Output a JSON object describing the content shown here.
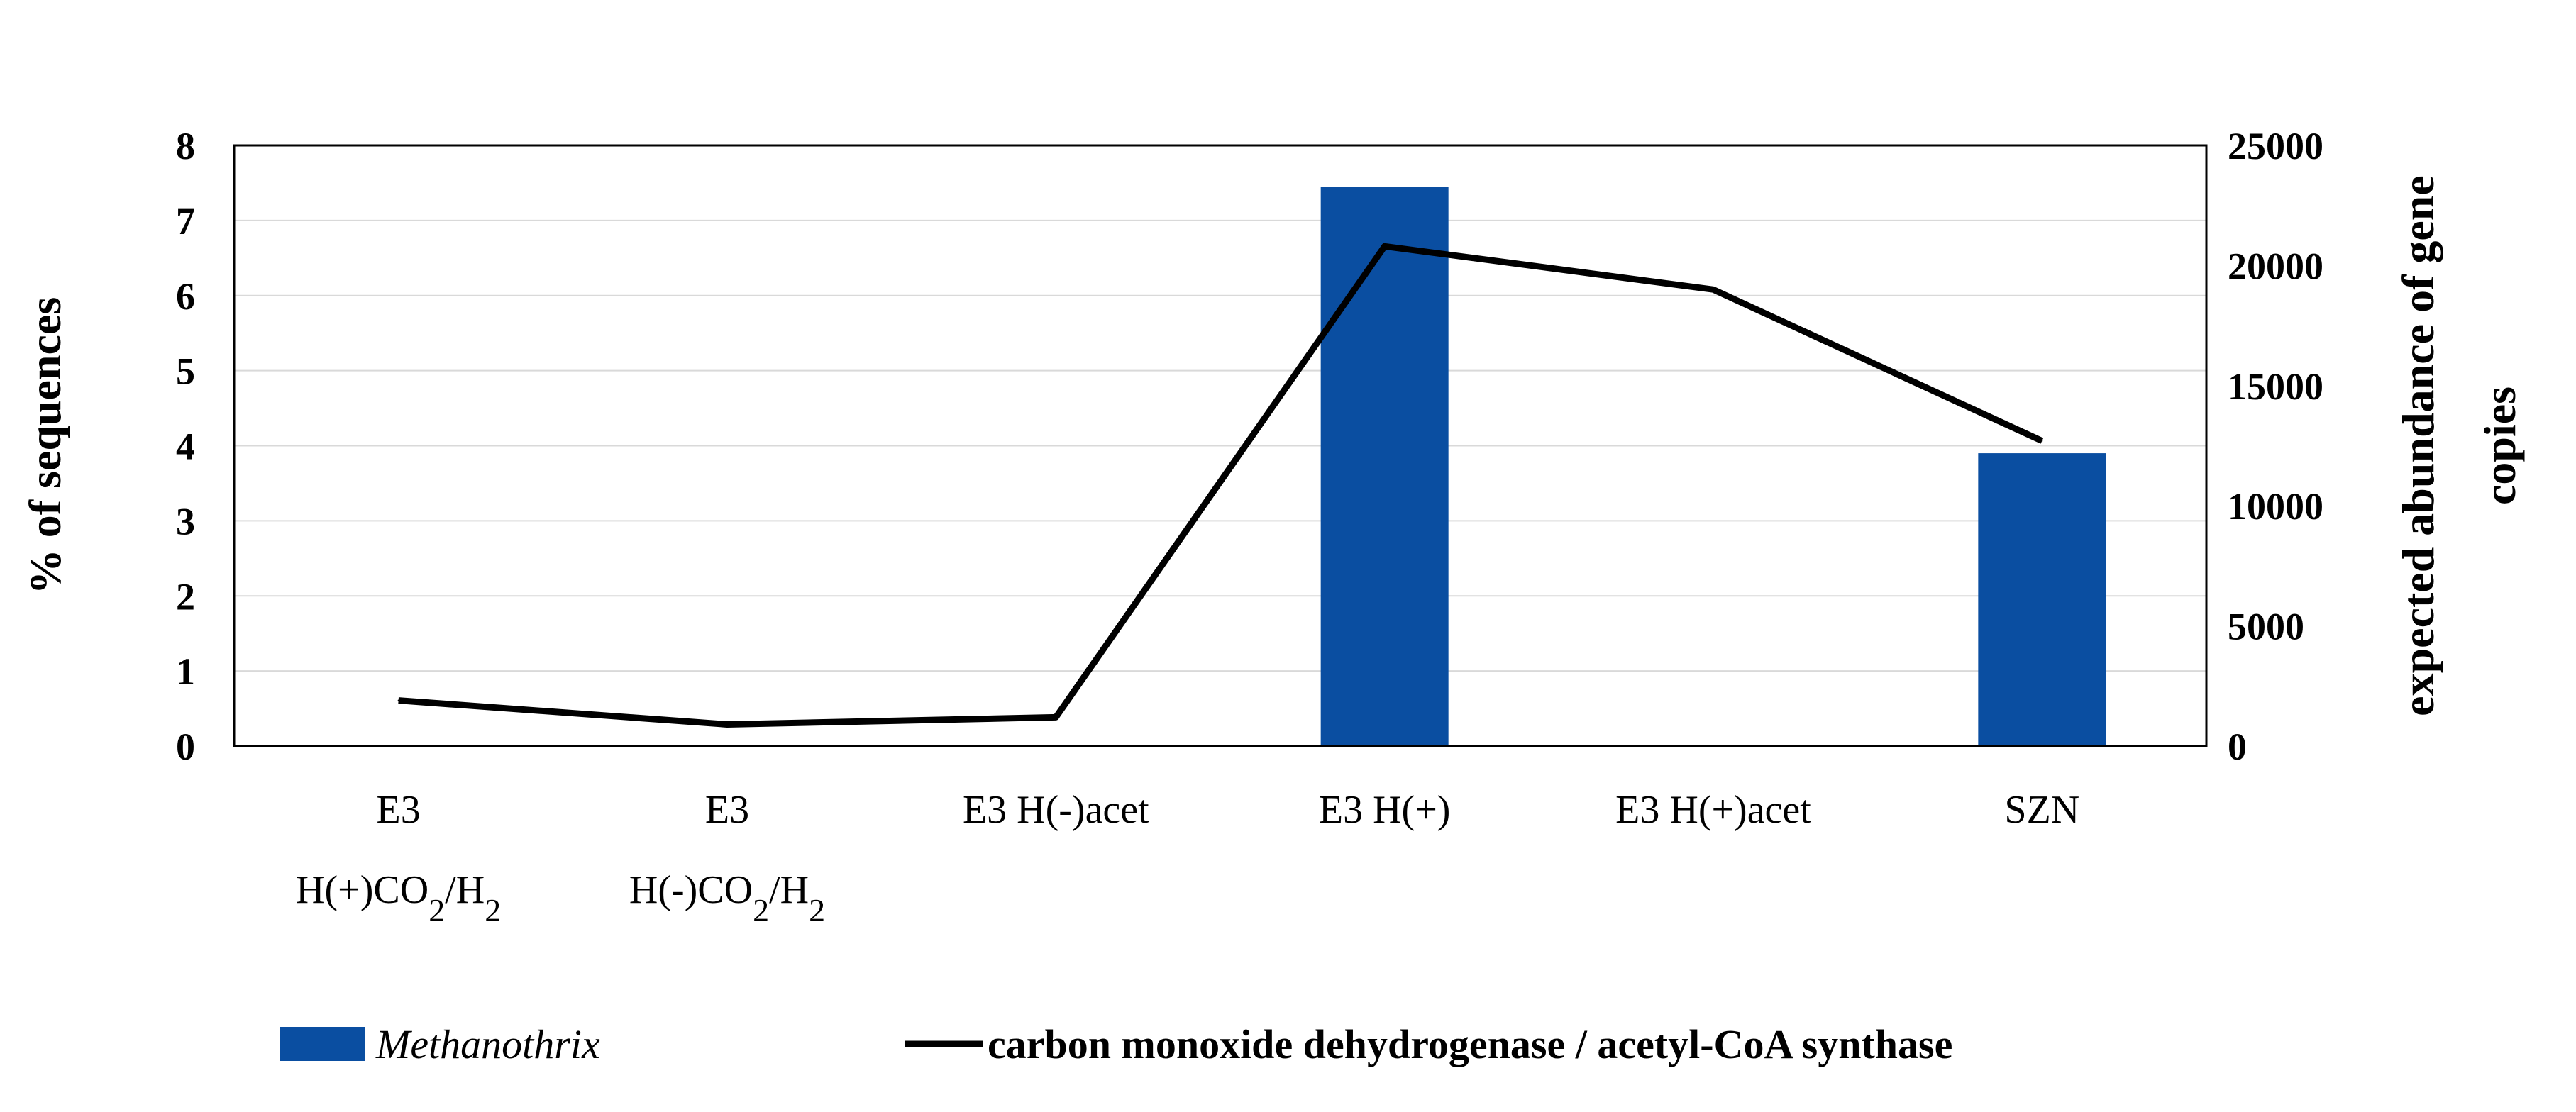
{
  "chart_data": {
    "type": "bar",
    "categories": [
      [
        "E3",
        "H(+)CO2/H2"
      ],
      [
        "E3",
        "H(-)CO2/H2"
      ],
      [
        "E3 H(-)acet"
      ],
      [
        "E3 H(+)"
      ],
      [
        "E3 H(+)acet"
      ],
      [
        "SZN"
      ]
    ],
    "series": [
      {
        "name": "Methanothrix",
        "type": "bar",
        "axis": "left",
        "color": "#0a4ea1",
        "values": [
          0,
          0,
          0,
          7.45,
          0,
          3.9
        ]
      },
      {
        "name": "carbon monoxide dehydrogenase / acetyl-CoA synthase",
        "type": "line",
        "axis": "right",
        "color": "#000000",
        "values": [
          1900,
          900,
          1200,
          20800,
          19000,
          12700
        ]
      }
    ],
    "ylabel": "% of sequences",
    "y2label_lines": [
      "expected abundance of gene",
      "copies"
    ],
    "ylim": [
      0,
      8
    ],
    "yticks": [
      "0",
      "1",
      "2",
      "3",
      "4",
      "5",
      "6",
      "7",
      "8"
    ],
    "y2lim": [
      0,
      25000
    ],
    "y2ticks": [
      "0",
      "5000",
      "10000",
      "15000",
      "20000",
      "25000"
    ],
    "grid": true,
    "legend_position": "bottom"
  }
}
